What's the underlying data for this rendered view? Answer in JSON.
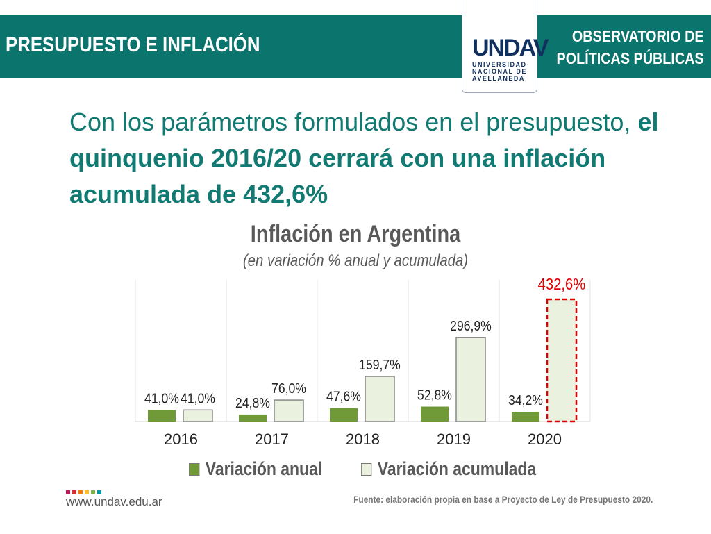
{
  "header": {
    "title": "PRESUPUESTO E INFLACIÓN",
    "observatorio_line1": "OBSERVATORIO DE",
    "observatorio_line2": "POLÍTICAS PÚBLICAS",
    "logo_mark": "UNDAV",
    "logo_line1": "UNIVERSIDAD",
    "logo_line2": "NACIONAL DE",
    "logo_line3": "AVELLANEDA"
  },
  "headline": {
    "normal": "Con los parámetros formulados en el presupuesto, ",
    "bold": "el quinquenio 2016/20 cerrará con una inflación acumulada de 432,6%"
  },
  "chart_data": {
    "type": "bar",
    "title": "Inflación en Argentina",
    "subtitle": "(en variación % anual y acumulada)",
    "categories": [
      "2016",
      "2017",
      "2018",
      "2019",
      "2020"
    ],
    "series": [
      {
        "name": "Variación anual",
        "values": [
          41.0,
          24.8,
          47.6,
          52.8,
          34.2
        ],
        "labels": [
          "41,0%",
          "24,8%",
          "47,6%",
          "52,8%",
          "34,2%"
        ],
        "color": "#6f9a37"
      },
      {
        "name": "Variación acumulada",
        "values": [
          41.0,
          76.0,
          159.7,
          296.9,
          432.6
        ],
        "labels": [
          "41,0%",
          "76,0%",
          "159,7%",
          "296,9%",
          "432,6%"
        ],
        "color": "#eaf1df"
      }
    ],
    "highlight": {
      "category": "2020",
      "color": "#e00000"
    },
    "ylim": [
      0,
      432.6
    ],
    "grid": "vertical separators"
  },
  "footer": {
    "url": "www.undav.edu.ar",
    "source": "Fuente: elaboración propia en base a Proyecto de Ley de Presupuesto 2020.",
    "dot_colors": [
      "#c2185b",
      "#d32f2f",
      "#f57c00",
      "#fbc02d",
      "#7cb342",
      "#0097a7"
    ]
  }
}
